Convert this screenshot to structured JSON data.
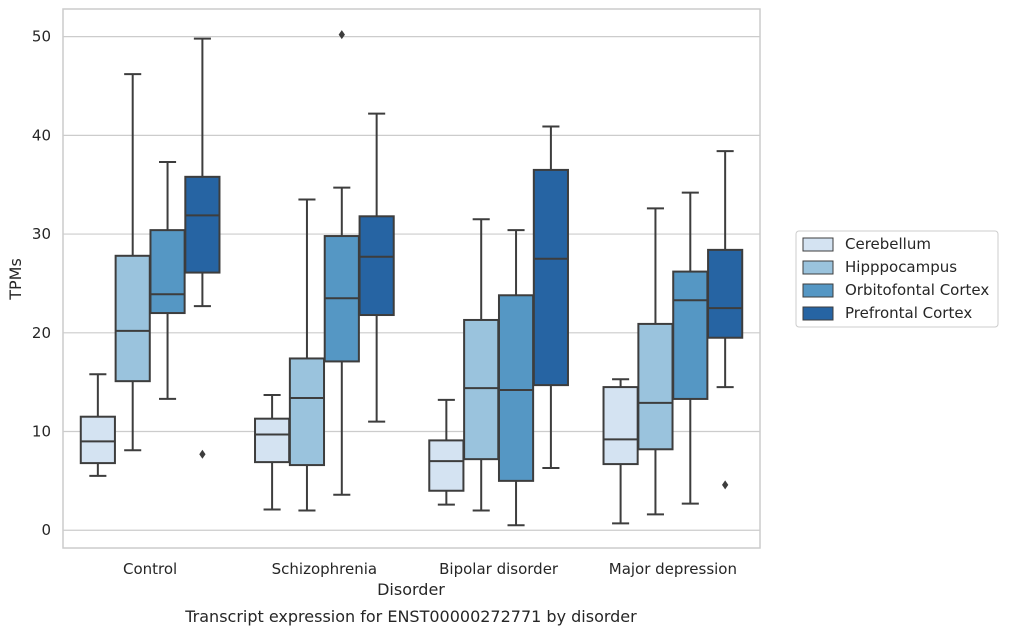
{
  "chart_data": {
    "type": "box",
    "title": "",
    "caption": "Transcript expression for ENST00000272771 by disorder",
    "xlabel": "Disorder",
    "ylabel": "TPMs",
    "ylim": [
      -1.8,
      52.8
    ],
    "yticks": [
      0,
      10,
      20,
      30,
      40,
      50
    ],
    "grid": "horizontal",
    "legend_position": "right",
    "categories": [
      "Control",
      "Schizophrenia",
      "Bipolar disorder",
      "Major depression"
    ],
    "series": [
      {
        "name": "Cerebellum",
        "color": "#d4e3f2",
        "boxes": [
          {
            "min": 5.5,
            "q1": 6.8,
            "median": 9.0,
            "q3": 11.5,
            "max": 15.8,
            "outliers": []
          },
          {
            "min": 2.1,
            "q1": 6.9,
            "median": 9.7,
            "q3": 11.3,
            "max": 13.7,
            "outliers": []
          },
          {
            "min": 2.6,
            "q1": 4.0,
            "median": 7.0,
            "q3": 9.1,
            "max": 13.2,
            "outliers": []
          },
          {
            "min": 0.7,
            "q1": 6.7,
            "median": 9.2,
            "q3": 14.5,
            "max": 15.3,
            "outliers": []
          }
        ]
      },
      {
        "name": "Hipppocampus",
        "color": "#9ac3dd",
        "boxes": [
          {
            "min": 8.1,
            "q1": 15.1,
            "median": 20.2,
            "q3": 27.8,
            "max": 46.2,
            "outliers": []
          },
          {
            "min": 2.0,
            "q1": 6.6,
            "median": 13.4,
            "q3": 17.4,
            "max": 33.5,
            "outliers": []
          },
          {
            "min": 2.0,
            "q1": 7.2,
            "median": 14.4,
            "q3": 21.3,
            "max": 31.5,
            "outliers": []
          },
          {
            "min": 1.6,
            "q1": 8.2,
            "median": 12.9,
            "q3": 20.9,
            "max": 32.6,
            "outliers": []
          }
        ]
      },
      {
        "name": "Orbitofontal Cortex",
        "color": "#5597c4",
        "boxes": [
          {
            "min": 13.3,
            "q1": 22.0,
            "median": 23.9,
            "q3": 30.4,
            "max": 37.3,
            "outliers": []
          },
          {
            "min": 3.6,
            "q1": 17.1,
            "median": 23.5,
            "q3": 29.8,
            "max": 34.7,
            "outliers": [
              50.2
            ]
          },
          {
            "min": 0.5,
            "q1": 5.0,
            "median": 14.2,
            "q3": 23.8,
            "max": 30.4,
            "outliers": []
          },
          {
            "min": 2.7,
            "q1": 13.3,
            "median": 23.3,
            "q3": 26.2,
            "max": 34.2,
            "outliers": []
          }
        ]
      },
      {
        "name": "Prefrontal Cortex",
        "color": "#2664a3",
        "boxes": [
          {
            "min": 22.7,
            "q1": 26.1,
            "median": 31.9,
            "q3": 35.8,
            "max": 49.8,
            "outliers": [
              7.7
            ]
          },
          {
            "min": 11.0,
            "q1": 21.8,
            "median": 27.7,
            "q3": 31.8,
            "max": 42.2,
            "outliers": []
          },
          {
            "min": 6.3,
            "q1": 14.7,
            "median": 27.5,
            "q3": 36.5,
            "max": 40.9,
            "outliers": []
          },
          {
            "min": 14.5,
            "q1": 19.5,
            "median": 22.5,
            "q3": 28.4,
            "max": 38.4,
            "outliers": [
              4.6
            ]
          }
        ]
      }
    ]
  }
}
